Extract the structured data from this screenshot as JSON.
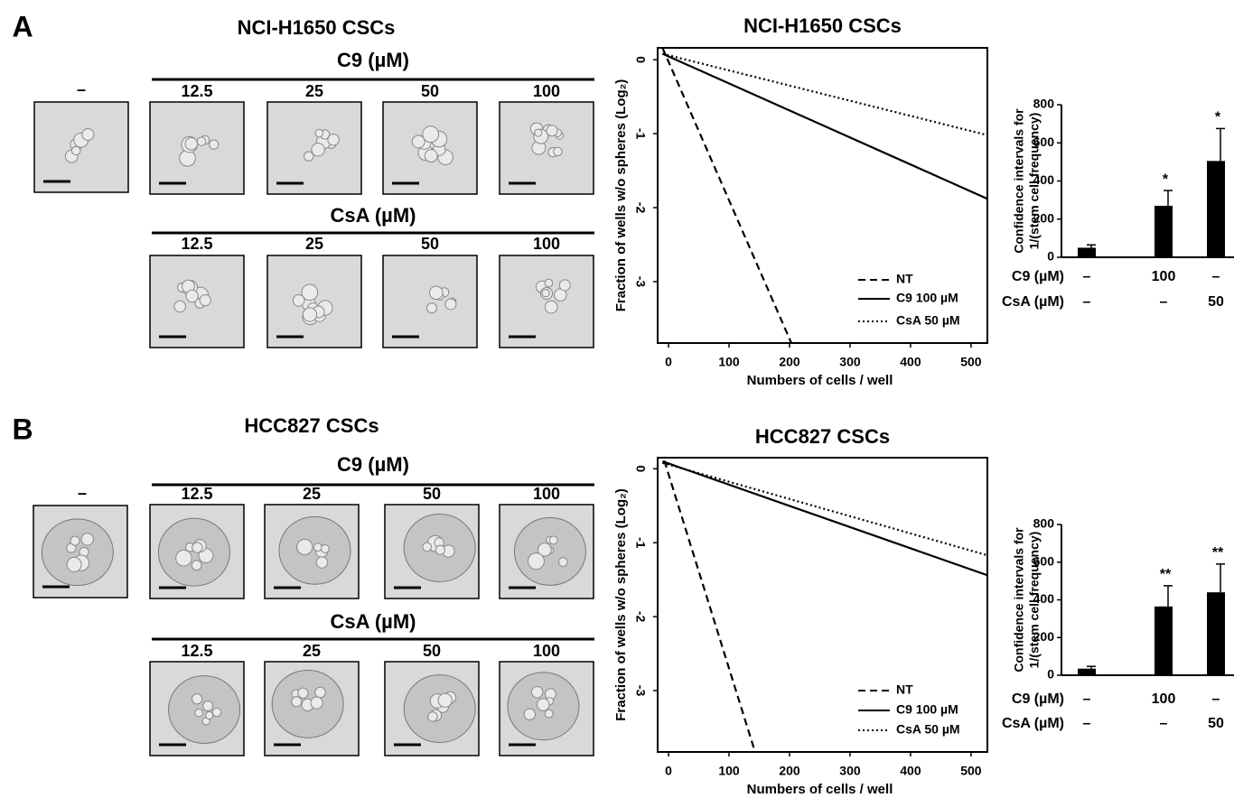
{
  "panels": [
    {
      "label": "A",
      "title": "NCI-H1650 CSCs",
      "control_label": "–",
      "groups": [
        {
          "title": "C9 (µM)",
          "doses": [
            "12.5",
            "25",
            "50",
            "100"
          ]
        },
        {
          "title": "CsA (µM)",
          "doses": [
            "12.5",
            "25",
            "50",
            "100"
          ]
        }
      ]
    },
    {
      "label": "B",
      "title": "HCC827 CSCs",
      "control_label": "–",
      "groups": [
        {
          "title": "C9 (µM)",
          "doses": [
            "12.5",
            "25",
            "50",
            "100"
          ]
        },
        {
          "title": "CsA (µM)",
          "doses": [
            "12.5",
            "25",
            "50",
            "100"
          ]
        }
      ]
    }
  ],
  "chart_data": [
    {
      "type": "line",
      "title": "NCI-H1650 CSCs",
      "x_label": "Numbers of cells / well",
      "y_label": "Fraction of wells w/o spheres (Log₂)",
      "xlim": [
        -18,
        527
      ],
      "ylim": [
        -3.83,
        0.16
      ],
      "xticks": [
        0,
        100,
        200,
        300,
        400,
        500
      ],
      "yticks": [
        0,
        -1,
        -2,
        -3
      ],
      "legend": "lower right",
      "series": [
        {
          "name": "NT",
          "color": "#000000",
          "dash": "dashed",
          "x": [
            -10,
            203
          ],
          "values": [
            0.16,
            -3.83
          ]
        },
        {
          "name": "C9 100 µM",
          "color": "#000000",
          "dash": "solid",
          "x": [
            -10,
            527
          ],
          "values": [
            0.08,
            -1.88
          ]
        },
        {
          "name": "CsA 50 µM",
          "color": "#000000",
          "dash": "dotted",
          "x": [
            -10,
            527
          ],
          "values": [
            0.08,
            -1.02
          ]
        }
      ]
    },
    {
      "type": "bar",
      "y_label": [
        "Confidence intervals for",
        "1/(stem cell frequency)"
      ],
      "ylim": [
        0,
        800
      ],
      "yticks": [
        0,
        200,
        400,
        600,
        800
      ],
      "color": "#000000",
      "values": [
        50,
        270,
        505
      ],
      "errors": [
        15,
        80,
        170
      ],
      "annotations": [
        null,
        "*",
        "*"
      ],
      "conditions": [
        {
          "name": "C9 (µM)",
          "values": [
            "–",
            "100",
            "–"
          ]
        },
        {
          "name": "CsA (µM)",
          "values": [
            "–",
            "–",
            "50"
          ]
        }
      ]
    },
    {
      "type": "line",
      "title": "HCC827 CSCs",
      "x_label": "Numbers of cells / well",
      "y_label": "Fraction of wells w/o spheres (Log₂)",
      "xlim": [
        -18,
        527
      ],
      "ylim": [
        -3.83,
        0.15
      ],
      "xticks": [
        0,
        100,
        200,
        300,
        400,
        500
      ],
      "yticks": [
        0,
        -1,
        -2,
        -3
      ],
      "legend": "lower right",
      "series": [
        {
          "name": "NT",
          "color": "#000000",
          "dash": "dashed",
          "x": [
            -7,
            143
          ],
          "values": [
            0.11,
            -3.83
          ]
        },
        {
          "name": "C9 100 µM",
          "color": "#000000",
          "dash": "solid",
          "x": [
            -10,
            527
          ],
          "values": [
            0.1,
            -1.44
          ]
        },
        {
          "name": "CsA 50 µM",
          "color": "#000000",
          "dash": "dotted",
          "x": [
            -10,
            527
          ],
          "values": [
            0.08,
            -1.17
          ]
        }
      ]
    },
    {
      "type": "bar",
      "y_label": [
        "Confidence intervals for",
        "1/(stem cell frequency)"
      ],
      "ylim": [
        0,
        800
      ],
      "yticks": [
        0,
        200,
        400,
        600,
        800
      ],
      "color": "#000000",
      "values": [
        35,
        365,
        440
      ],
      "errors": [
        12,
        110,
        150
      ],
      "annotations": [
        null,
        "**",
        "**"
      ],
      "conditions": [
        {
          "name": "C9 (µM)",
          "values": [
            "–",
            "100",
            "–"
          ]
        },
        {
          "name": "CsA (µM)",
          "values": [
            "–",
            "–",
            "50"
          ]
        }
      ]
    }
  ]
}
